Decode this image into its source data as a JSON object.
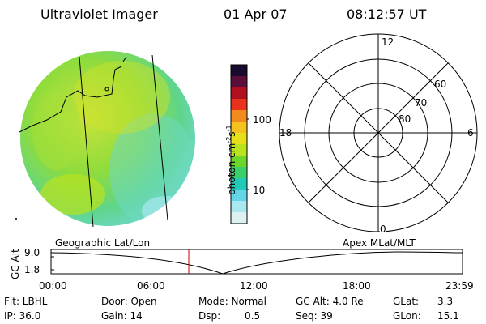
{
  "header": {
    "title": "Ultraviolet Imager",
    "date": "01 Apr 07",
    "time": "08:12:57 UT"
  },
  "colorbar": {
    "unit_base": "photon cm",
    "unit_exp1": "-2",
    "unit_mid": "s",
    "unit_exp2": "-1",
    "ticks": [
      "100",
      "10"
    ],
    "colors": [
      "#1a0b2e",
      "#5a0f3a",
      "#b00f1e",
      "#e8321c",
      "#f28a1e",
      "#f5c21d",
      "#e6e01a",
      "#b9e31c",
      "#6cd72a",
      "#3bcf6a",
      "#22c9b6",
      "#62d6e6",
      "#a9e8ef",
      "#dcf2f2"
    ]
  },
  "polar_plot": {
    "labels": [
      "12",
      "18",
      "6",
      "0",
      "60",
      "70",
      "80"
    ]
  },
  "timeline": {
    "ylabel": "GC Alt",
    "y_ticks": [
      "9.0",
      "1.8"
    ],
    "left_label": "Geographic Lat/Lon",
    "right_label": "Apex MLat/MLT",
    "x_ticks": [
      "00:00",
      "06:00",
      "12:00",
      "18:00",
      "23:59"
    ],
    "marker_color": "#cc0000"
  },
  "footer": {
    "filter": "Flt: LBHL",
    "ip": "IP: 36.0",
    "door": "Door: Open",
    "gain": "Gain: 14",
    "mode": "Mode: Normal",
    "dsp_label": "Dsp:",
    "dsp_value": "0.5",
    "gc_alt": "GC Alt: 4.0 Re",
    "seq": "Seq: 39",
    "glat_label": "GLat:",
    "glat_value": "3.3",
    "glon_label": "GLon:",
    "glon_value": "15.1"
  }
}
